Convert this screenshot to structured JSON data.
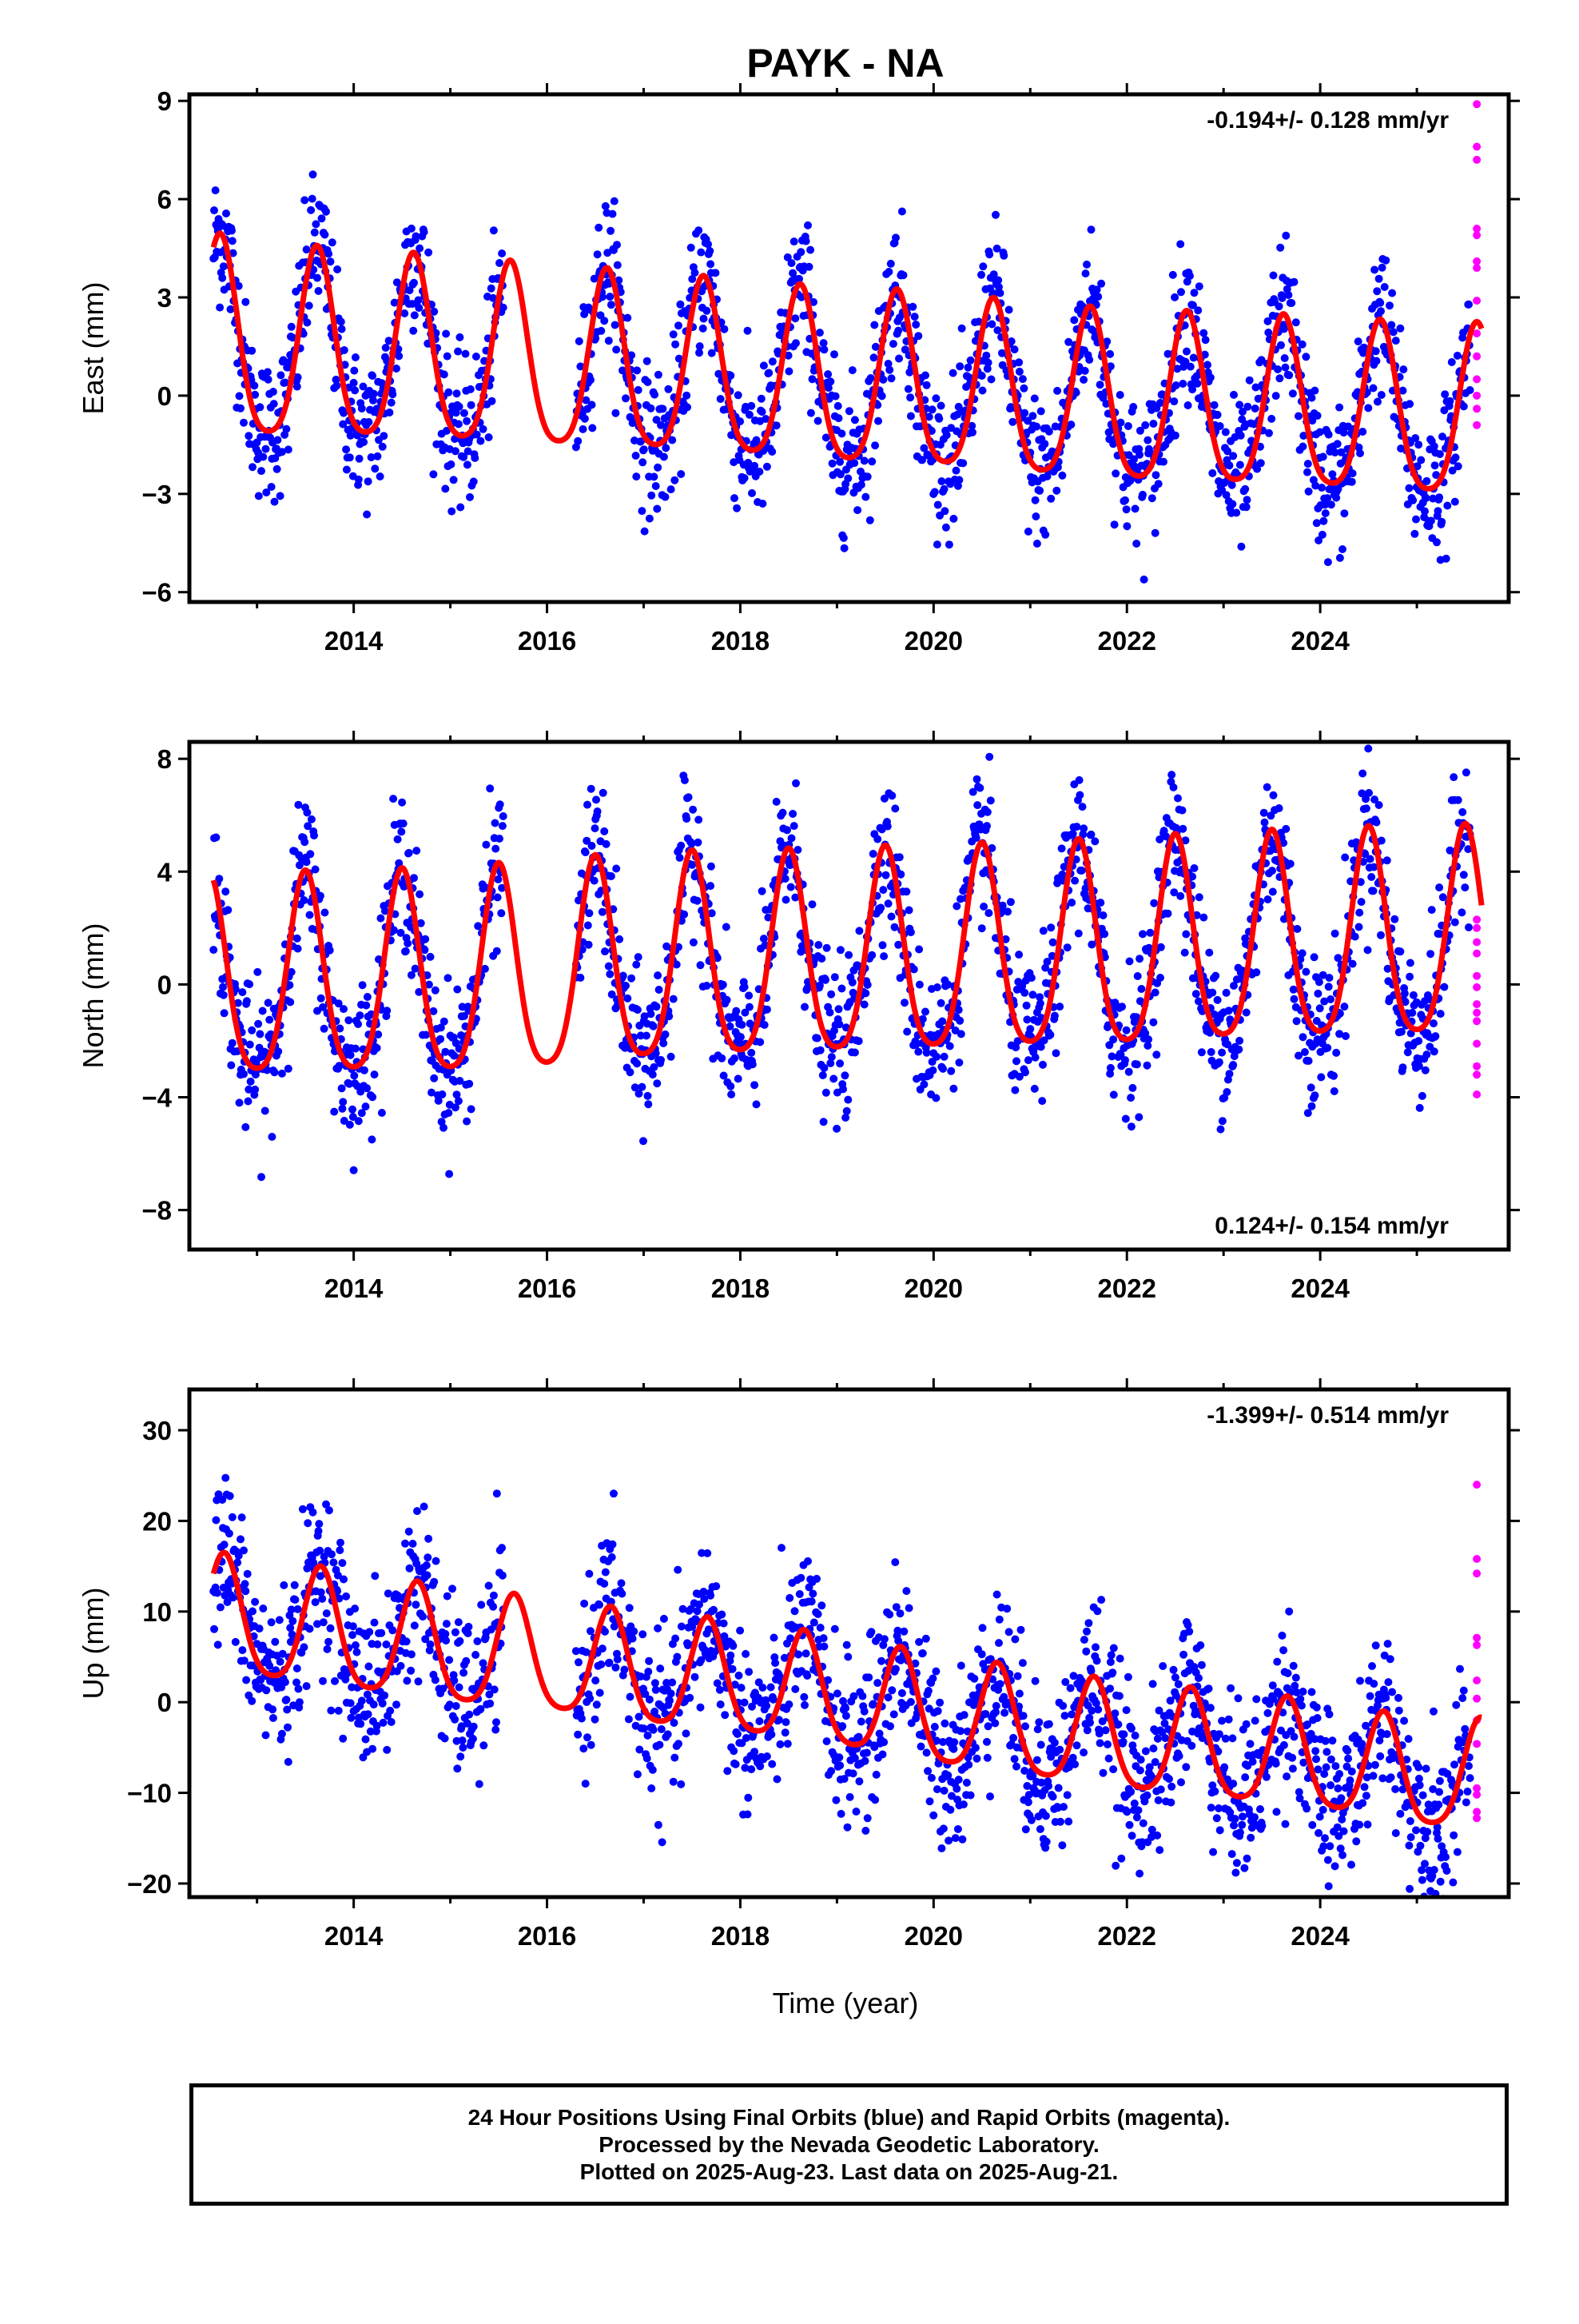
{
  "title": "PAYK - NA",
  "xlabel": "Time (year)",
  "caption": [
    "24 Hour Positions Using Final Orbits (blue) and Rapid Orbits (magenta).",
    "Processed by the Nevada Geodetic Laboratory.",
    "Plotted on 2025-Aug-23. Last data on 2025-Aug-21."
  ],
  "colors": {
    "final": "#0000ff",
    "rapid": "#ff00ff",
    "model": "#ff0000",
    "frame": "#000000"
  },
  "chart_data": [
    {
      "type": "scatter",
      "component": "East",
      "ylabel": "East (mm)",
      "rate_text": "-0.194+/- 0.128 mm/yr",
      "rate_position": "top-right",
      "xlim": [
        2012.3,
        2025.95
      ],
      "ylim": [
        -6.3,
        9.2
      ],
      "xticks": [
        2014,
        2016,
        2018,
        2020,
        2022,
        2024
      ],
      "yticks": [
        -6,
        -3,
        0,
        3,
        6,
        9
      ],
      "ytick_labels": [
        "−6",
        "−3",
        "0",
        "3",
        "6",
        "9"
      ],
      "model": {
        "amp": [
          3.0,
          2.9,
          2.8,
          2.75,
          2.7,
          2.65,
          2.6,
          2.6,
          2.6,
          2.55,
          2.55,
          2.55,
          2.55,
          2.55
        ],
        "mean": [
          1.8,
          1.3,
          1.2,
          1.05,
          0.85,
          0.7,
          0.5,
          0.25,
          0.15,
          -0.15,
          -0.35,
          -0.45,
          -0.55,
          -0.75
        ],
        "peak_phase": 0.62,
        "scatter": 1.1
      },
      "data_gap": [
        2015.55,
        2016.3
      ],
      "final_range": [
        2012.55,
        2025.55
      ],
      "rapid": {
        "x": 2025.62,
        "values": [
          8.9,
          7.6,
          7.2,
          5.1,
          4.9,
          4.1,
          3.9,
          2.9,
          1.9,
          1.2,
          0.5,
          0.0,
          -0.4,
          -0.9
        ]
      },
      "series": [
        {
          "name": "Final Orbits (blue)",
          "color": "#0000ff"
        },
        {
          "name": "Rapid Orbits (magenta)",
          "color": "#ff00ff"
        },
        {
          "name": "Model fit",
          "color": "#ff0000"
        }
      ]
    },
    {
      "type": "scatter",
      "component": "North",
      "ylabel": "North (mm)",
      "rate_text": "0.124+/- 0.154 mm/yr",
      "rate_position": "bottom-right",
      "xlim": [
        2012.3,
        2025.95
      ],
      "ylim": [
        -9.4,
        8.6
      ],
      "xticks": [
        2014,
        2016,
        2018,
        2020,
        2022,
        2024
      ],
      "yticks": [
        -8,
        -4,
        0,
        4,
        8
      ],
      "ytick_labels": [
        "−8",
        "−4",
        "0",
        "4",
        "8"
      ],
      "model": {
        "amp": [
          3.5,
          3.5,
          3.5,
          3.55,
          3.6,
          3.6,
          3.55,
          3.55,
          3.55,
          3.55,
          3.6,
          3.6,
          3.6,
          3.65
        ],
        "mean": [
          -0.2,
          -0.1,
          -0.05,
          0.0,
          0.2,
          0.5,
          0.6,
          0.7,
          0.8,
          0.9,
          1.0,
          1.2,
          1.3,
          1.4
        ],
        "peak_phase": 0.5,
        "scatter": 1.3
      },
      "data_gap": [
        2015.55,
        2016.3
      ],
      "final_range": [
        2012.55,
        2025.55
      ],
      "rapid": {
        "x": 2025.62,
        "values": [
          2.3,
          2.0,
          1.5,
          1.1,
          0.3,
          -0.1,
          -0.7,
          -1.0,
          -1.3,
          -2.1,
          -2.9,
          -3.2,
          -3.9
        ]
      },
      "series": [
        {
          "name": "Final Orbits (blue)",
          "color": "#0000ff"
        },
        {
          "name": "Rapid Orbits (magenta)",
          "color": "#ff00ff"
        },
        {
          "name": "Model fit",
          "color": "#ff0000"
        }
      ]
    },
    {
      "type": "scatter",
      "component": "Up",
      "ylabel": "Up (mm)",
      "rate_text": "-1.399+/- 0.514 mm/yr",
      "rate_position": "top-right",
      "xlim": [
        2012.3,
        2025.95
      ],
      "ylim": [
        -21.5,
        34.5
      ],
      "xticks": [
        2014,
        2016,
        2018,
        2020,
        2022,
        2024
      ],
      "yticks": [
        -20,
        -10,
        0,
        10,
        20,
        30
      ],
      "ytick_labels": [
        "−20",
        "−10",
        "0",
        "10",
        "20",
        "30"
      ],
      "model": {
        "amp": [
          6.5,
          6.5,
          6.3,
          6.2,
          6.0,
          6.0,
          6.0,
          5.9,
          5.9,
          5.8,
          5.8,
          5.8,
          5.8,
          5.8
        ],
        "mean": [
          9.5,
          8.5,
          7.0,
          5.5,
          4.5,
          3.0,
          2.0,
          0.5,
          -1.5,
          -3.0,
          -4.5,
          -5.5,
          -6.5,
          -8.5
        ],
        "peak_phase": 0.66,
        "scatter": 4.5
      },
      "data_gap": [
        2015.55,
        2016.3
      ],
      "final_range": [
        2012.55,
        2025.55
      ],
      "rapid": {
        "x": 2025.62,
        "values": [
          24.0,
          15.8,
          14.2,
          7.1,
          6.3,
          2.4,
          0.4,
          -2.0,
          -4.6,
          -9.5,
          -10.2,
          -12.1,
          -12.8
        ]
      },
      "series": [
        {
          "name": "Final Orbits (blue)",
          "color": "#0000ff"
        },
        {
          "name": "Rapid Orbits (magenta)",
          "color": "#ff00ff"
        },
        {
          "name": "Model fit",
          "color": "#ff0000"
        }
      ]
    }
  ]
}
